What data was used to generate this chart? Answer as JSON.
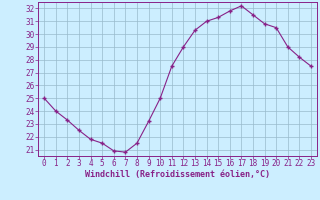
{
  "x": [
    0,
    1,
    2,
    3,
    4,
    5,
    6,
    7,
    8,
    9,
    10,
    11,
    12,
    13,
    14,
    15,
    16,
    17,
    18,
    19,
    20,
    21,
    22,
    23
  ],
  "y": [
    25.0,
    24.0,
    23.3,
    22.5,
    21.8,
    21.5,
    20.9,
    20.8,
    21.5,
    23.2,
    25.0,
    27.5,
    29.0,
    30.3,
    31.0,
    31.3,
    31.8,
    32.2,
    31.5,
    30.8,
    30.5,
    29.0,
    28.2,
    27.5
  ],
  "line_color": "#882288",
  "marker": "+",
  "marker_size": 3,
  "bg_color": "#cceeff",
  "grid_color": "#99bbcc",
  "xlabel": "Windchill (Refroidissement éolien,°C)",
  "xlabel_color": "#882288",
  "ylim": [
    20.5,
    32.5
  ],
  "xlim": [
    -0.5,
    23.5
  ],
  "yticks": [
    21,
    22,
    23,
    24,
    25,
    26,
    27,
    28,
    29,
    30,
    31,
    32
  ],
  "xticks": [
    0,
    1,
    2,
    3,
    4,
    5,
    6,
    7,
    8,
    9,
    10,
    11,
    12,
    13,
    14,
    15,
    16,
    17,
    18,
    19,
    20,
    21,
    22,
    23
  ],
  "tick_fontsize": 5.5,
  "xlabel_fontsize": 6.0
}
